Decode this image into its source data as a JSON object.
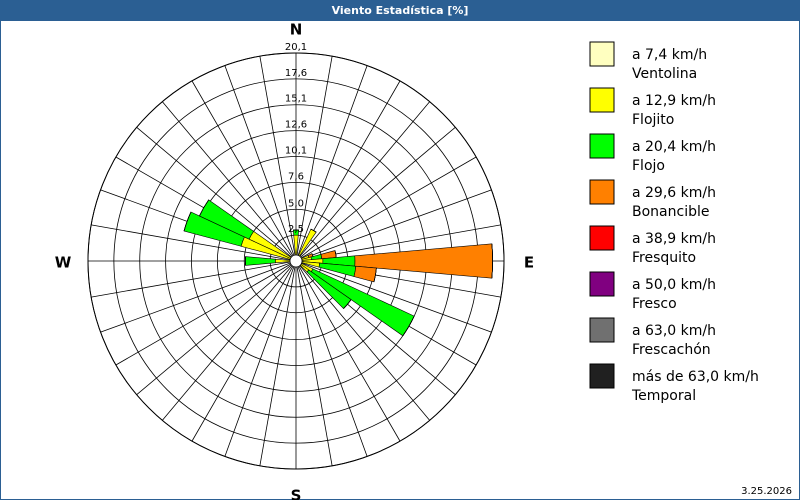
{
  "chart_data": {
    "type": "windrose",
    "title": "Viento Estadística [%]",
    "compass_labels": [
      {
        "angle": 0,
        "label": "N"
      },
      {
        "angle": 90,
        "label": "E"
      },
      {
        "angle": 180,
        "label": "S"
      },
      {
        "angle": 270,
        "label": "W"
      }
    ],
    "x": [
      0,
      30,
      70,
      80,
      90,
      100,
      120,
      130,
      270,
      290,
      300
    ],
    "ylim": [
      0,
      20.1
    ],
    "yticks": [
      {
        "value": 2.5,
        "label": "2,5"
      },
      {
        "value": 5.0,
        "label": "5,0"
      },
      {
        "value": 7.6,
        "label": "7,6"
      },
      {
        "value": 10.1,
        "label": "10,1"
      },
      {
        "value": 12.6,
        "label": "12,6"
      },
      {
        "value": 15.1,
        "label": "15,1"
      },
      {
        "value": 17.6,
        "label": "17,6"
      },
      {
        "value": 20.1,
        "label": "20,1"
      }
    ],
    "series": [
      {
        "name": "a 7,4 km/h",
        "subname": "Ventolina",
        "color": "#ffffc0",
        "values": [
          0.5,
          0.3,
          0.3,
          0.3,
          0.3,
          0.3,
          0.3,
          0.3,
          0.3,
          0.5,
          0.5
        ]
      },
      {
        "name": "a 12,9 km/h",
        "subname": "Flojito",
        "color": "#ffff00",
        "values": [
          2.0,
          3.1,
          1.0,
          1.2,
          2.3,
          2.0,
          1.5,
          1.2,
          1.7,
          5.0,
          4.5
        ]
      },
      {
        "name": "a 20,4 km/h",
        "subname": "Flojo",
        "color": "#00ff00",
        "values": [
          0.5,
          0,
          0,
          1.0,
          3.1,
          3.5,
          10.8,
          5.0,
          2.9,
          5.7,
          5.3
        ]
      },
      {
        "name": "a 29,6 km/h",
        "subname": "Bonancible",
        "color": "#ff8000",
        "values": [
          0,
          0,
          0.4,
          1.4,
          13.3,
          2.0,
          0,
          0,
          0,
          0,
          0
        ]
      },
      {
        "name": "a 38,9 km/h",
        "subname": "Fresquito",
        "color": "#ff0000",
        "values": [
          0,
          0,
          0,
          0,
          0,
          0,
          0,
          0,
          0,
          0,
          0
        ]
      },
      {
        "name": "a 50,0 km/h",
        "subname": "Fresco",
        "color": "#800080",
        "values": [
          0,
          0,
          0,
          0,
          0,
          0,
          0,
          0,
          0,
          0,
          0
        ]
      },
      {
        "name": "a 63,0 km/h",
        "subname": "Frescachón",
        "color": "#707070",
        "values": [
          0,
          0,
          0,
          0,
          0,
          0,
          0,
          0,
          0,
          0,
          0
        ]
      },
      {
        "name": "más de 63,0 km/h",
        "subname": "Temporal",
        "color": "#202020",
        "values": [
          0,
          0,
          0,
          0,
          0,
          0,
          0,
          0,
          0,
          0,
          0
        ]
      }
    ],
    "footer": "3.25.2026"
  }
}
